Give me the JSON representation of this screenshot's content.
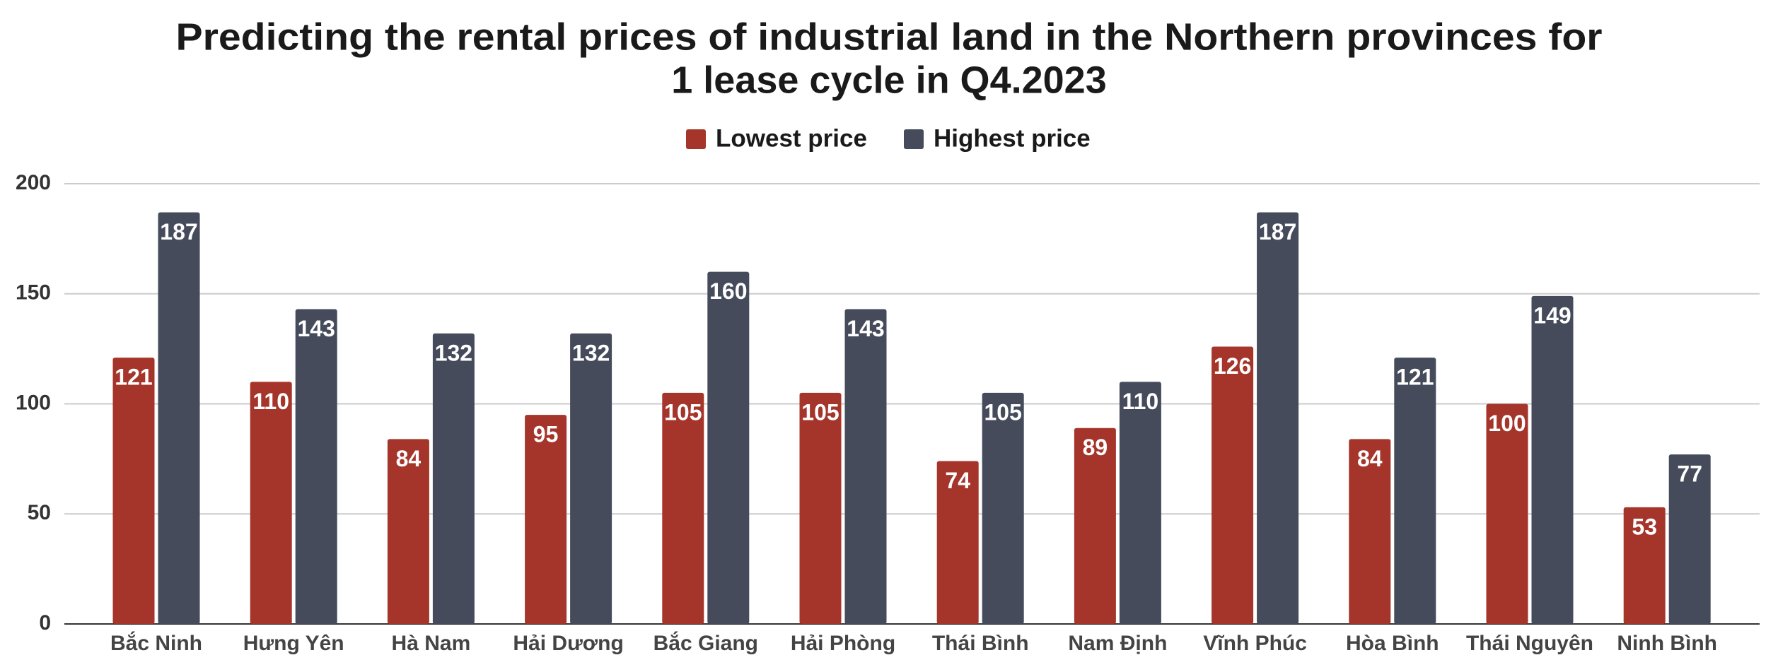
{
  "chart_data": {
    "type": "bar",
    "title": [
      "Predicting the rental prices of industrial land in the Northern provinces for",
      "1 lease cycle in Q4.2023"
    ],
    "categories": [
      "Bắc Ninh",
      "Hưng Yên",
      "Hà Nam",
      "Hải Dương",
      "Bắc Giang",
      "Hải Phòng",
      "Thái Bình",
      "Nam Định",
      "Vĩnh Phúc",
      "Hòa Bình",
      "Thái Nguyên",
      "Ninh Bình"
    ],
    "series": [
      {
        "name": "Lowest price",
        "color": "#a5352a",
        "values": [
          121,
          110,
          84,
          95,
          105,
          105,
          74,
          89,
          126,
          84,
          100,
          53
        ]
      },
      {
        "name": "Highest price",
        "color": "#454b5b",
        "values": [
          187,
          143,
          132,
          132,
          160,
          143,
          105,
          110,
          187,
          121,
          149,
          77
        ]
      }
    ],
    "ylim": [
      0,
      200
    ],
    "yticks": [
      0,
      50,
      100,
      150,
      200
    ],
    "grid": true,
    "legend": "top"
  }
}
